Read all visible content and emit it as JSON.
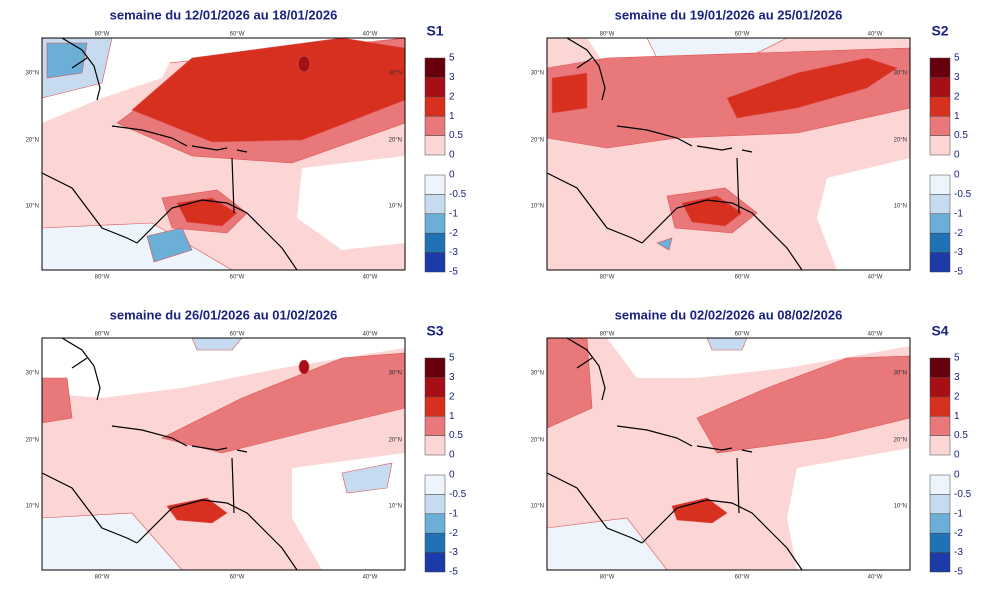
{
  "panels": [
    {
      "title": "semaine du 12/01/2026 au 18/01/2026",
      "label": "S1"
    },
    {
      "title": "semaine du 19/01/2026 au 25/01/2026",
      "label": "S2"
    },
    {
      "title": "semaine du 26/01/2026 au 01/02/2026",
      "label": "S3"
    },
    {
      "title": "semaine du 02/02/2026 au 08/02/2026",
      "label": "S4"
    }
  ],
  "map": {
    "lon_labels": [
      "80°W",
      "60°W",
      "40°W"
    ],
    "lat_labels": [
      "30°N",
      "20°N",
      "10°N"
    ]
  },
  "colorbar": {
    "positive": [
      5,
      3,
      2,
      1,
      0.5,
      0
    ],
    "negative": [
      0,
      -0.5,
      -1,
      -2,
      -3,
      -5
    ]
  }
}
